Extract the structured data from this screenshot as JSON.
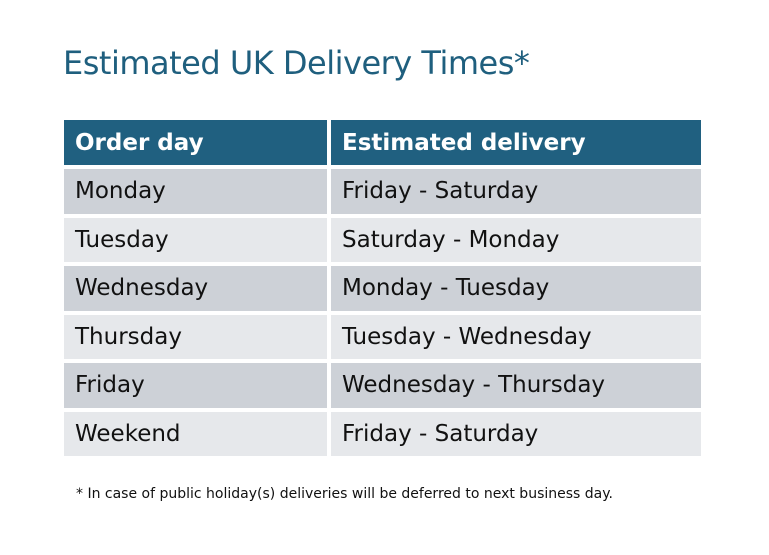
{
  "title": "Estimated UK Delivery Times*",
  "table": {
    "headers": [
      "Order day",
      "Estimated delivery"
    ],
    "rows": [
      [
        "Monday",
        "Friday - Saturday"
      ],
      [
        "Tuesday",
        "Saturday - Monday"
      ],
      [
        "Wednesday",
        "Monday - Tuesday"
      ],
      [
        "Thursday",
        "Tuesday - Wednesday"
      ],
      [
        "Friday",
        "Wednesday - Thursday"
      ],
      [
        "Weekend",
        "Friday - Saturday"
      ]
    ]
  },
  "footnote": "* In case of public holiday(s) deliveries will be deferred to next business day.",
  "colors": {
    "header": "#206080",
    "title": "#1f5f7e",
    "row_odd": "#cdd1d7",
    "row_even": "#e6e8eb"
  }
}
